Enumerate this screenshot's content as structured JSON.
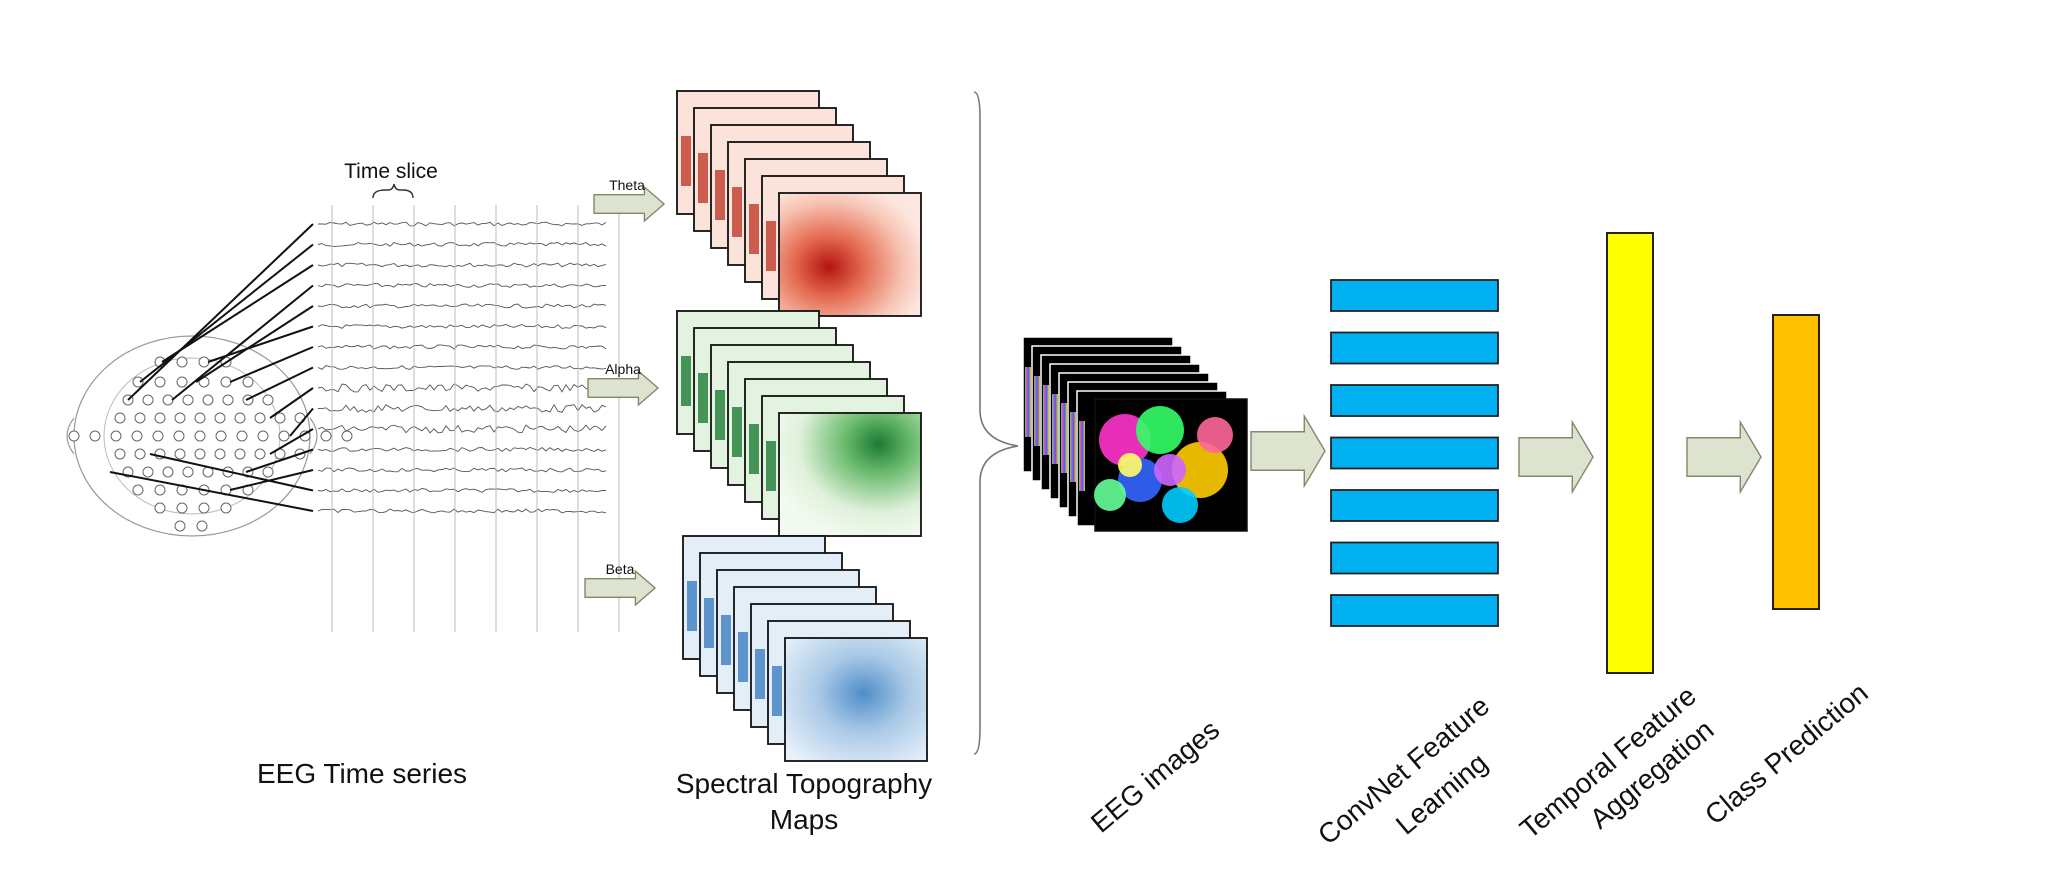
{
  "labels": {
    "time_slice": "Time slice",
    "eeg_time_series": "EEG Time series",
    "spectral_line1": "Spectral Topography",
    "spectral_line2": "Maps",
    "eeg_images": "EEG images",
    "convnet_line1": "ConvNet Feature",
    "convnet_line2": "Learning",
    "temporal_line1": "Temporal Feature",
    "temporal_line2": "Aggregation",
    "class_prediction": "Class Prediction"
  },
  "bands": [
    {
      "name": "Theta",
      "color": "#c0392b",
      "light": "#fbe3dc"
    },
    {
      "name": "Alpha",
      "color": "#1e7b34",
      "light": "#e2f3df"
    },
    {
      "name": "Beta",
      "color": "#3b7dbf",
      "light": "#e3eef9"
    }
  ],
  "colors": {
    "arrow_fill": "#dde3cf",
    "arrow_stroke": "#7f8a6a",
    "convnet_blocks": "#00b0f0",
    "temporal_block": "#ffff00",
    "class_block": "#ffc000"
  }
}
